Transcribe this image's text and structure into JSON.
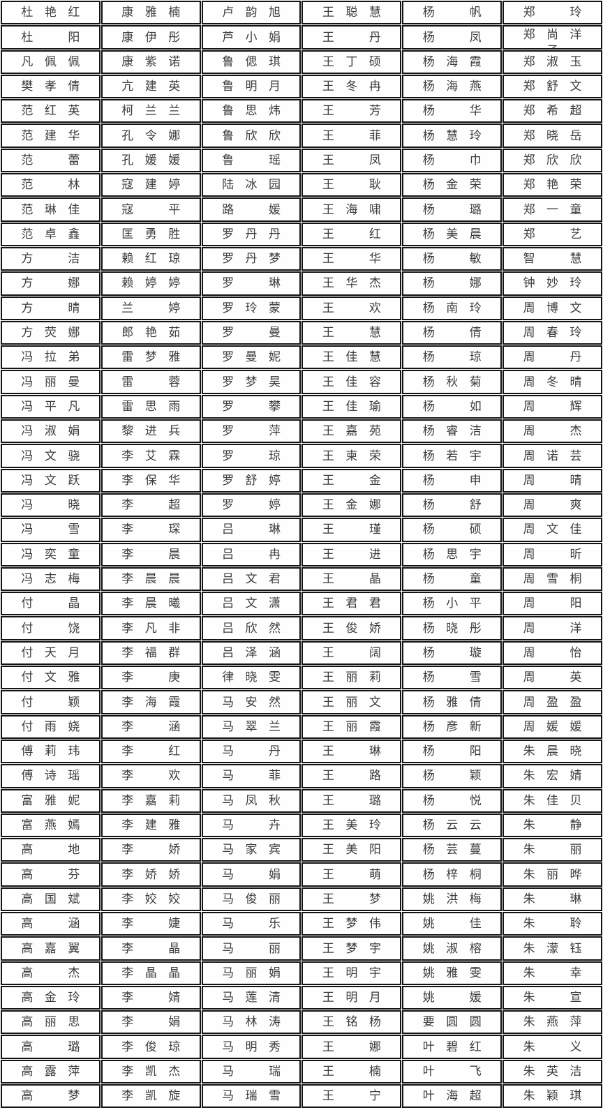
{
  "colors": {
    "border": "#141414",
    "text": "#3c3c3c",
    "background": "#ffffff"
  },
  "table": {
    "columns": 6,
    "rows": [
      [
        "杜艳红",
        "康雅楠",
        "卢韵旭",
        "王聪慧",
        "杨帆",
        "郑玲"
      ],
      [
        "杜阳",
        "康伊彤",
        "芦小娟",
        "王丹",
        "杨凤",
        "郑尚洋子"
      ],
      [
        "凡佩佩",
        "康紫诺",
        "鲁偲琪",
        "王丁硕",
        "杨海霞",
        "郑淑玉"
      ],
      [
        "樊孝倩",
        "亢建英",
        "鲁明月",
        "王冬冉",
        "杨海燕",
        "郑舒文"
      ],
      [
        "范红英",
        "柯兰兰",
        "鲁思炜",
        "王芳",
        "杨华",
        "郑希超"
      ],
      [
        "范建华",
        "孔令娜",
        "鲁欣欣",
        "王菲",
        "杨慧玲",
        "郑晓岳"
      ],
      [
        "范蕾",
        "孔媛媛",
        "鲁瑶",
        "王凤",
        "杨巾",
        "郑欣欣"
      ],
      [
        "范林",
        "寇建婷",
        "陆冰园",
        "王耿",
        "杨金荣",
        "郑艳荣"
      ],
      [
        "范琳佳",
        "寇平",
        "路媛",
        "王海啸",
        "杨璐",
        "郑一童"
      ],
      [
        "范卓鑫",
        "匡勇胜",
        "罗丹丹",
        "王红",
        "杨美晨",
        "郑艺"
      ],
      [
        "方洁",
        "赖红琼",
        "罗丹梦",
        "王华",
        "杨敏",
        "智慧"
      ],
      [
        "方娜",
        "赖婷婷",
        "罗琳",
        "王华杰",
        "杨娜",
        "钟妙玲"
      ],
      [
        "方晴",
        "兰婷",
        "罗玲蒙",
        "王欢",
        "杨南玲",
        "周博文"
      ],
      [
        "方荧娜",
        "郎艳茹",
        "罗曼",
        "王慧",
        "杨倩",
        "周春玲"
      ],
      [
        "冯拉弟",
        "雷梦雅",
        "罗曼妮",
        "王佳慧",
        "杨琼",
        "周丹"
      ],
      [
        "冯丽曼",
        "雷蓉",
        "罗梦昊",
        "王佳容",
        "杨秋菊",
        "周冬晴"
      ],
      [
        "冯平凡",
        "雷思雨",
        "罗攀",
        "王佳瑜",
        "杨如",
        "周辉"
      ],
      [
        "冯淑娟",
        "黎进兵",
        "罗萍",
        "王嘉苑",
        "杨睿洁",
        "周杰"
      ],
      [
        "冯文骁",
        "李艾霖",
        "罗琼",
        "王柬荣",
        "杨若宇",
        "周诺芸"
      ],
      [
        "冯文跃",
        "李保华",
        "罗舒婷",
        "王金",
        "杨申",
        "周晴"
      ],
      [
        "冯晓",
        "李超",
        "罗婷",
        "王金娜",
        "杨舒",
        "周爽"
      ],
      [
        "冯雪",
        "李琛",
        "吕琳",
        "王瑾",
        "杨硕",
        "周文佳"
      ],
      [
        "冯奕童",
        "李晨",
        "吕冉",
        "王进",
        "杨思宇",
        "周昕"
      ],
      [
        "冯志梅",
        "李晨晨",
        "吕文君",
        "王晶",
        "杨童",
        "周雪桐"
      ],
      [
        "付晶",
        "李晨曦",
        "吕文潇",
        "王君君",
        "杨小平",
        "周阳"
      ],
      [
        "付饶",
        "李凡非",
        "吕欣然",
        "王俊娇",
        "杨晓彤",
        "周洋"
      ],
      [
        "付天月",
        "李福群",
        "吕泽涵",
        "王阔",
        "杨璇",
        "周怡"
      ],
      [
        "付文雅",
        "李庚",
        "律晓雯",
        "王丽莉",
        "杨雪",
        "周英"
      ],
      [
        "付颖",
        "李海霞",
        "马安然",
        "王丽文",
        "杨雅倩",
        "周盈盈"
      ],
      [
        "付雨娆",
        "李涵",
        "马翠兰",
        "王丽霞",
        "杨彦新",
        "周媛媛"
      ],
      [
        "傅莉玮",
        "李红",
        "马丹",
        "王琳",
        "杨阳",
        "朱晨晓"
      ],
      [
        "傅诗瑶",
        "李欢",
        "马菲",
        "王路",
        "杨颖",
        "朱宏婧"
      ],
      [
        "富雅妮",
        "李嘉莉",
        "马凤秋",
        "王璐",
        "杨悦",
        "朱佳贝"
      ],
      [
        "富燕嫣",
        "李建雅",
        "马卉",
        "王美玲",
        "杨云云",
        "朱静"
      ],
      [
        "高地",
        "李娇",
        "马家宾",
        "王美阳",
        "杨芸蔓",
        "朱丽"
      ],
      [
        "高芬",
        "李娇娇",
        "马娟",
        "王萌",
        "杨梓桐",
        "朱丽晔"
      ],
      [
        "高国斌",
        "李姣姣",
        "马俊丽",
        "王梦",
        "姚洪梅",
        "朱琳"
      ],
      [
        "高涵",
        "李婕",
        "马乐",
        "王梦伟",
        "姚佳",
        "朱聆"
      ],
      [
        "高嘉翼",
        "李晶",
        "马丽",
        "王梦宇",
        "姚淑榕",
        "朱濛钰"
      ],
      [
        "高杰",
        "李晶晶",
        "马丽娟",
        "王明宇",
        "姚雅雯",
        "朱幸"
      ],
      [
        "高金玲",
        "李婧",
        "马莲清",
        "王明月",
        "姚媛",
        "朱宣"
      ],
      [
        "高丽思",
        "李娟",
        "马林涛",
        "王铭杨",
        "要圆圆",
        "朱燕萍"
      ],
      [
        "高璐",
        "李俊琼",
        "马明秀",
        "王娜",
        "叶碧红",
        "朱义"
      ],
      [
        "高露萍",
        "李凯杰",
        "马瑞",
        "王楠",
        "叶飞",
        "朱英洁"
      ],
      [
        "高梦",
        "李凯旋",
        "马瑞雪",
        "王宁",
        "叶海超",
        "朱颖琪"
      ]
    ]
  }
}
